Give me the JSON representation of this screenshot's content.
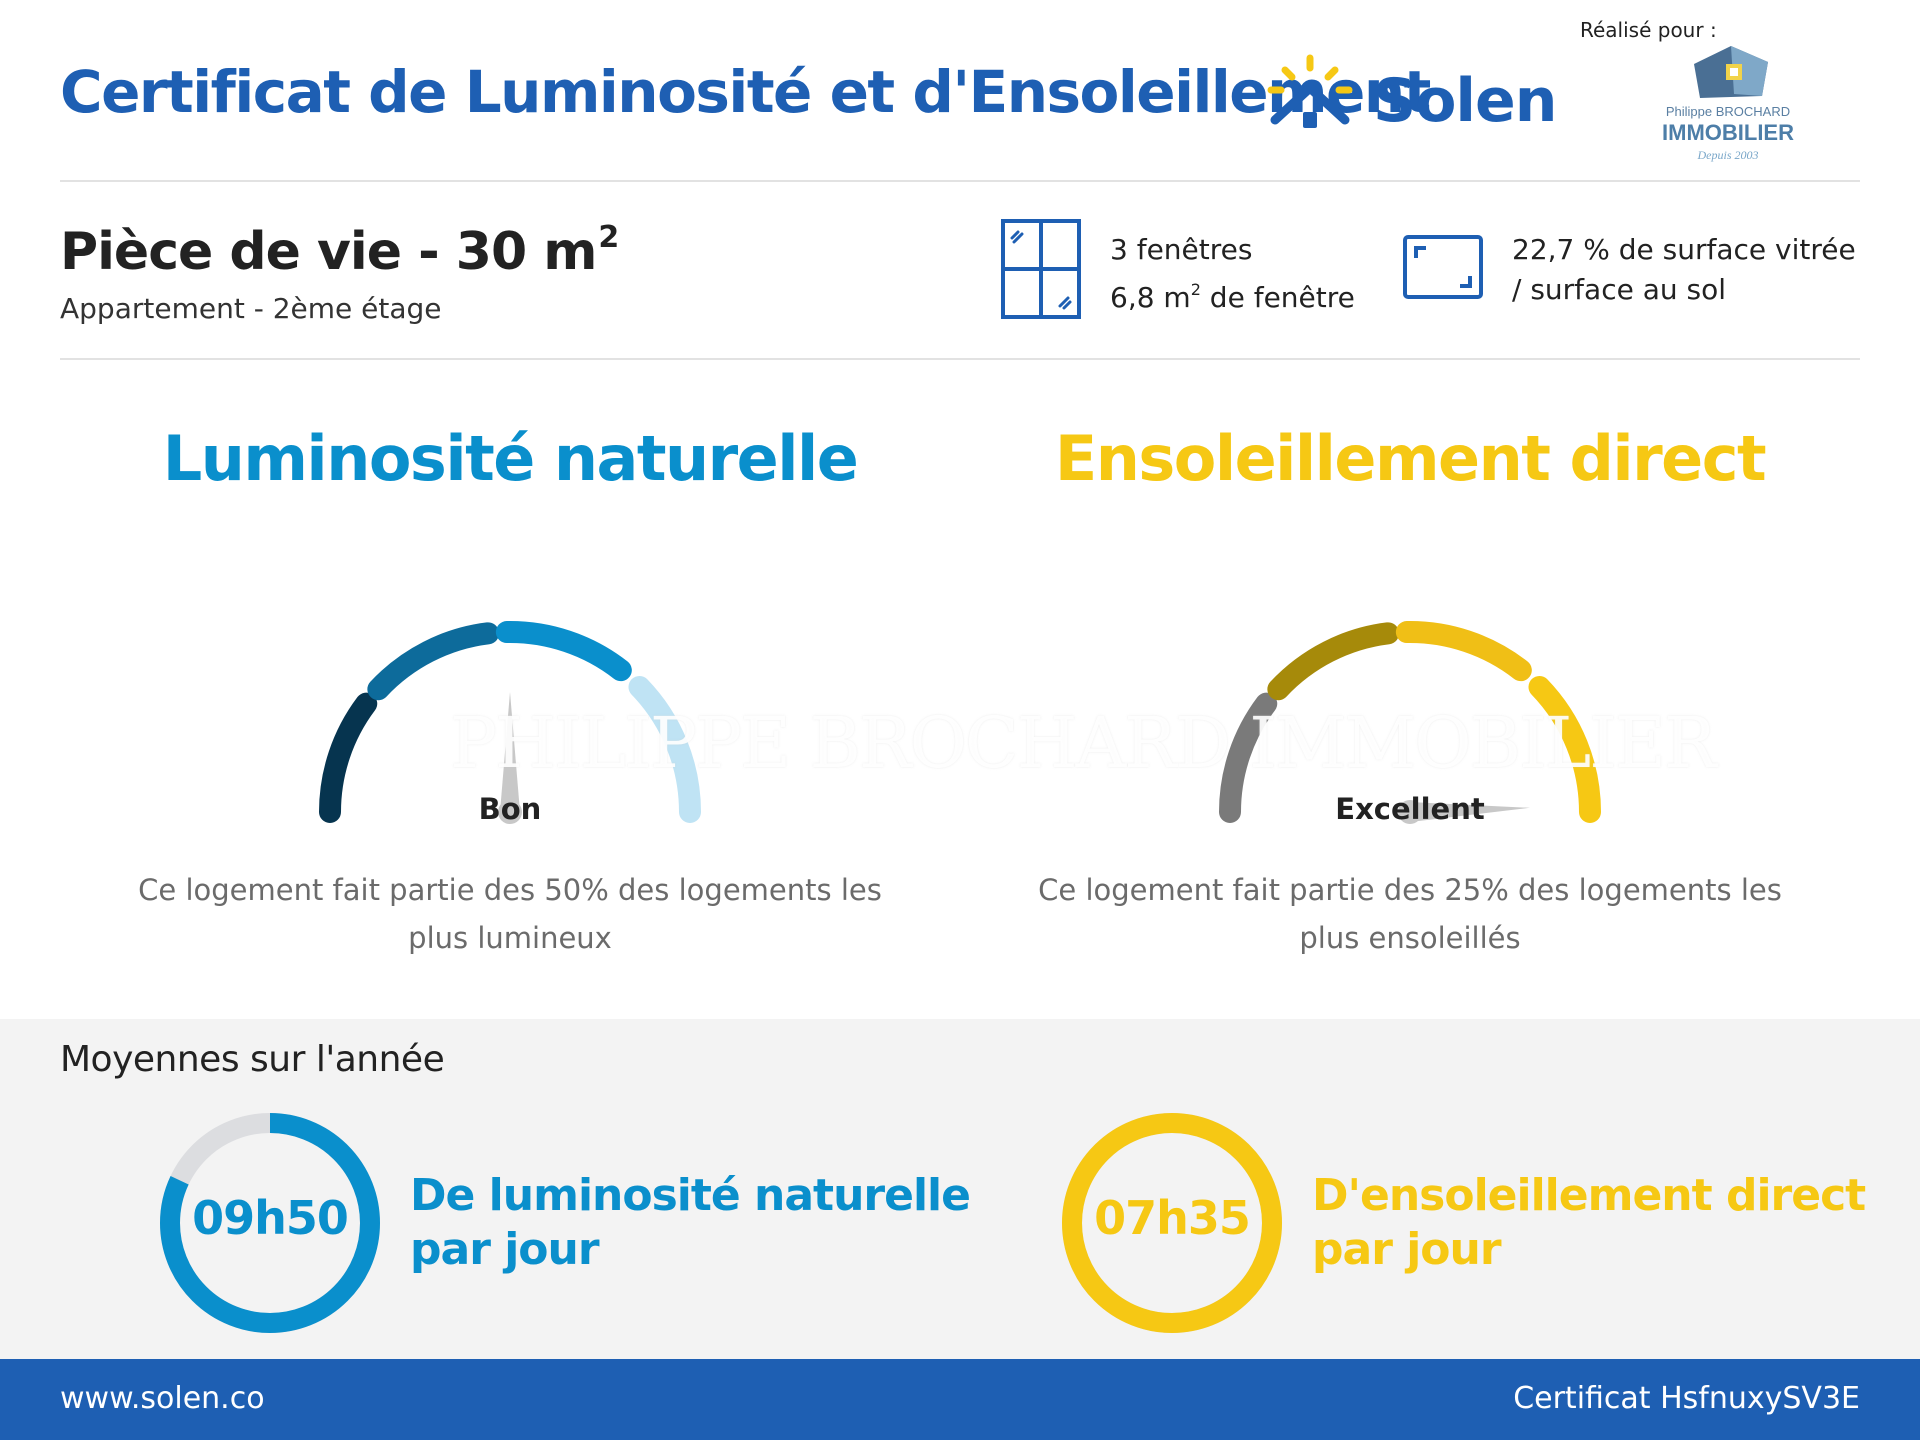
{
  "header": {
    "title": "Certificat de Luminosité et d'Ensoleillement",
    "brand": "Solen",
    "realise_pour": "Réalisé pour :",
    "agency_name_small": "Philippe BROCHARD",
    "agency_name_big": "IMMOBILIER",
    "agency_since": "Depuis 2003"
  },
  "room": {
    "title": "Pièce de vie - 30 m",
    "title_exponent": "2",
    "subtitle": "Appartement - 2ème étage",
    "windows_count": "3 fenêtres",
    "windows_area": "6,8 m",
    "windows_area_exponent": "2",
    "windows_area_suffix": " de fenêtre",
    "glazed_ratio_line1": "22,7 % de surface vitrée",
    "glazed_ratio_line2": "/ surface au sol"
  },
  "luminosite": {
    "title": "Luminosité naturelle",
    "level": "Bon",
    "level_index": 3,
    "level_count": 5,
    "description": "Ce logement fait partie des 50% des logements les plus lumineux"
  },
  "ensoleillement": {
    "title": "Ensoleillement direct",
    "level": "Excellent",
    "level_index": 5,
    "level_count": 5,
    "description": "Ce logement fait partie des 25% des logements les plus ensoleillés"
  },
  "watermark": "PHILIPPE BROCHARD IMMOBILIER",
  "averages": {
    "title": "Moyennes sur l'année",
    "luminosite_value": "09h50",
    "luminosite_fraction": 0.82,
    "luminosite_label_line1": "De luminosité naturelle",
    "luminosite_label_line2": "par jour",
    "ensoleillement_value": "07h35",
    "ensoleillement_fraction": 1.0,
    "ensoleillement_label_line1": "D'ensoleillement direct",
    "ensoleillement_label_line2": "par jour"
  },
  "footer": {
    "url": "www.solen.co",
    "certificate": "Certificat HsfnuxySV3E"
  },
  "colors": {
    "brand_blue": "#1e5fb3",
    "lum_blue": "#0a8fcc",
    "sun_yellow": "#f6c814",
    "lum_gauge": [
      "#06344f",
      "#0d6b9b",
      "#0a8fcc",
      "#bfe3f4",
      "#bfe3f4"
    ],
    "sun_gauge": [
      "#7a7a7a",
      "#a68a0a",
      "#f0bf16",
      "#f6c814",
      "#f6c814"
    ]
  }
}
